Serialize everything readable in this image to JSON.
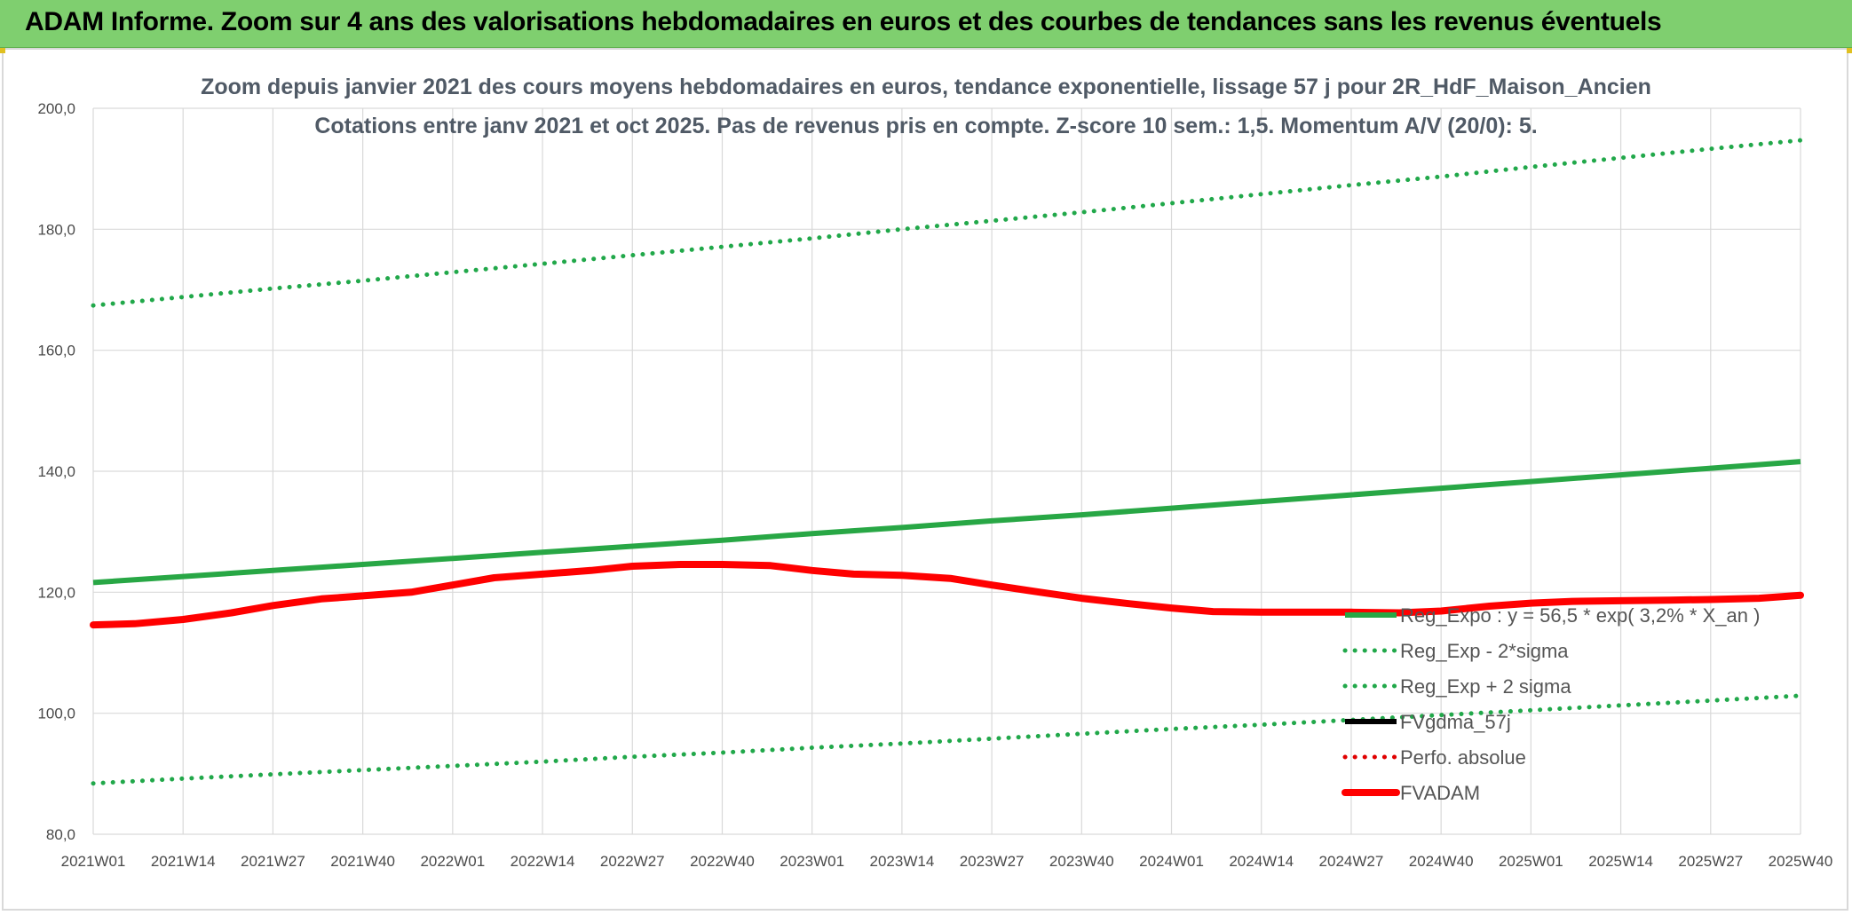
{
  "banner": {
    "title": "ADAM Informe. Zoom sur 4 ans des valorisations hebdomadaires en euros et des courbes de tendances sans les revenus éventuels"
  },
  "colors": {
    "banner_bg": "#7fcf6f",
    "reg_expo": "#28a745",
    "sigma_bands": "#21a84a",
    "fvgdma": "#000000",
    "perfo_absolue": "#e00000",
    "fvadam": "#ff0000",
    "grid": "#d9d9d9"
  },
  "chart_data": {
    "type": "line",
    "title": "Zoom depuis janvier 2021 des cours moyens hebdomadaires en euros, tendance exponentielle, lissage 57 j pour 2R_HdF_Maison_Ancien",
    "subtitle": "Cotations entre janv 2021 et oct 2025. Pas de revenus pris en compte. Z-score 10 sem.: 1,5. Momentum A/V (20/0): 5.",
    "xlabel": "",
    "ylabel": "",
    "x_tick_labels": [
      "2021W01",
      "2021W14",
      "2021W27",
      "2021W40",
      "2022W01",
      "2022W14",
      "2022W27",
      "2022W40",
      "2023W01",
      "2023W14",
      "2023W27",
      "2023W40",
      "2024W01",
      "2024W14",
      "2024W27",
      "2024W40",
      "2025W01",
      "2025W14",
      "2025W27",
      "2025W40"
    ],
    "y_tick_labels": [
      "80,0",
      "100,0",
      "120,0",
      "140,0",
      "160,0",
      "180,0",
      "200,0"
    ],
    "ylim": [
      80,
      200
    ],
    "y_ticks": [
      80,
      100,
      120,
      140,
      160,
      180,
      200
    ],
    "grid": true,
    "legend_position": "bottom-right",
    "series": [
      {
        "name": "Reg_Expo : y = 56,5 * exp( 3,2% *  X_an )",
        "style": "solid",
        "color": "#28a745",
        "x": [
          "2021W01",
          "2021W14",
          "2021W27",
          "2021W40",
          "2022W01",
          "2022W14",
          "2022W27",
          "2022W40",
          "2023W01",
          "2023W14",
          "2023W27",
          "2023W40",
          "2024W01",
          "2024W14",
          "2024W27",
          "2024W40",
          "2025W01",
          "2025W14",
          "2025W27",
          "2025W40"
        ],
        "values": [
          121.6,
          122.6,
          123.6,
          124.6,
          125.6,
          126.6,
          127.6,
          128.6,
          129.7,
          130.7,
          131.8,
          132.8,
          133.9,
          135.0,
          136.1,
          137.2,
          138.3,
          139.4,
          140.5,
          141.6
        ]
      },
      {
        "name": "Reg_Exp - 2*sigma",
        "style": "dotted",
        "color": "#21a84a",
        "x": [
          "2021W01",
          "2021W14",
          "2021W27",
          "2021W40",
          "2022W01",
          "2022W14",
          "2022W27",
          "2022W40",
          "2023W01",
          "2023W14",
          "2023W27",
          "2023W40",
          "2024W01",
          "2024W14",
          "2024W27",
          "2024W40",
          "2025W01",
          "2025W14",
          "2025W27",
          "2025W40"
        ],
        "values": [
          88.4,
          89.2,
          89.9,
          90.6,
          91.3,
          92.0,
          92.8,
          93.5,
          94.3,
          95.0,
          95.8,
          96.6,
          97.4,
          98.1,
          98.9,
          99.7,
          100.5,
          101.3,
          102.1,
          102.9
        ]
      },
      {
        "name": "Reg_Exp + 2 sigma",
        "style": "dotted",
        "color": "#21a84a",
        "x": [
          "2021W01",
          "2021W14",
          "2021W27",
          "2021W40",
          "2022W01",
          "2022W14",
          "2022W27",
          "2022W40",
          "2023W01",
          "2023W14",
          "2023W27",
          "2023W40",
          "2024W01",
          "2024W14",
          "2024W27",
          "2024W40",
          "2025W01",
          "2025W14",
          "2025W27",
          "2025W40"
        ],
        "values": [
          167.4,
          168.8,
          170.2,
          171.5,
          172.9,
          174.3,
          175.7,
          177.1,
          178.5,
          180.0,
          181.4,
          182.8,
          184.3,
          185.8,
          187.3,
          188.7,
          190.3,
          191.8,
          193.3,
          194.7
        ]
      },
      {
        "name": "FVgdma_57j",
        "style": "solid",
        "color": "#000000",
        "x": [
          "2021W01",
          "2021W07",
          "2021W14",
          "2021W21",
          "2021W27",
          "2021W34",
          "2021W40",
          "2021W47",
          "2022W01",
          "2022W07",
          "2022W14",
          "2022W21",
          "2022W27",
          "2022W34",
          "2022W40",
          "2022W47",
          "2023W01",
          "2023W07",
          "2023W14",
          "2023W21",
          "2023W27",
          "2023W34",
          "2023W40",
          "2023W47",
          "2024W01",
          "2024W07",
          "2024W14",
          "2024W21",
          "2024W27",
          "2024W34",
          "2024W40",
          "2024W47",
          "2025W01",
          "2025W07",
          "2025W14",
          "2025W21",
          "2025W27",
          "2025W34",
          "2025W40"
        ],
        "values": [
          114.6,
          114.8,
          115.5,
          116.6,
          117.8,
          118.9,
          119.4,
          120.0,
          121.2,
          122.4,
          123.0,
          123.6,
          124.3,
          124.6,
          124.6,
          124.4,
          123.6,
          123.0,
          122.8,
          122.3,
          121.2,
          120.0,
          119.0,
          118.1,
          117.4,
          116.8,
          116.7,
          116.7,
          116.7,
          116.6,
          116.9,
          117.7,
          118.2,
          118.5,
          118.6,
          118.7,
          118.8,
          119.0,
          119.5
        ]
      },
      {
        "name": "Perfo. absolue",
        "style": "dotted",
        "color": "#e00000",
        "x": [],
        "values": []
      },
      {
        "name": "FVADAM",
        "style": "solid-thick",
        "color": "#ff0000",
        "x": [
          "2021W01",
          "2021W07",
          "2021W14",
          "2021W21",
          "2021W27",
          "2021W34",
          "2021W40",
          "2021W47",
          "2022W01",
          "2022W07",
          "2022W14",
          "2022W21",
          "2022W27",
          "2022W34",
          "2022W40",
          "2022W47",
          "2023W01",
          "2023W07",
          "2023W14",
          "2023W21",
          "2023W27",
          "2023W34",
          "2023W40",
          "2023W47",
          "2024W01",
          "2024W07",
          "2024W14",
          "2024W21",
          "2024W27",
          "2024W34",
          "2024W40",
          "2024W47",
          "2025W01",
          "2025W07",
          "2025W14",
          "2025W21",
          "2025W27",
          "2025W34",
          "2025W40"
        ],
        "values": [
          114.6,
          114.8,
          115.5,
          116.6,
          117.8,
          118.9,
          119.4,
          120.0,
          121.2,
          122.4,
          123.0,
          123.6,
          124.3,
          124.6,
          124.6,
          124.4,
          123.6,
          123.0,
          122.8,
          122.3,
          121.2,
          120.0,
          119.0,
          118.1,
          117.4,
          116.8,
          116.7,
          116.7,
          116.7,
          116.6,
          116.9,
          117.7,
          118.2,
          118.5,
          118.6,
          118.7,
          118.8,
          119.0,
          119.5
        ]
      }
    ]
  }
}
